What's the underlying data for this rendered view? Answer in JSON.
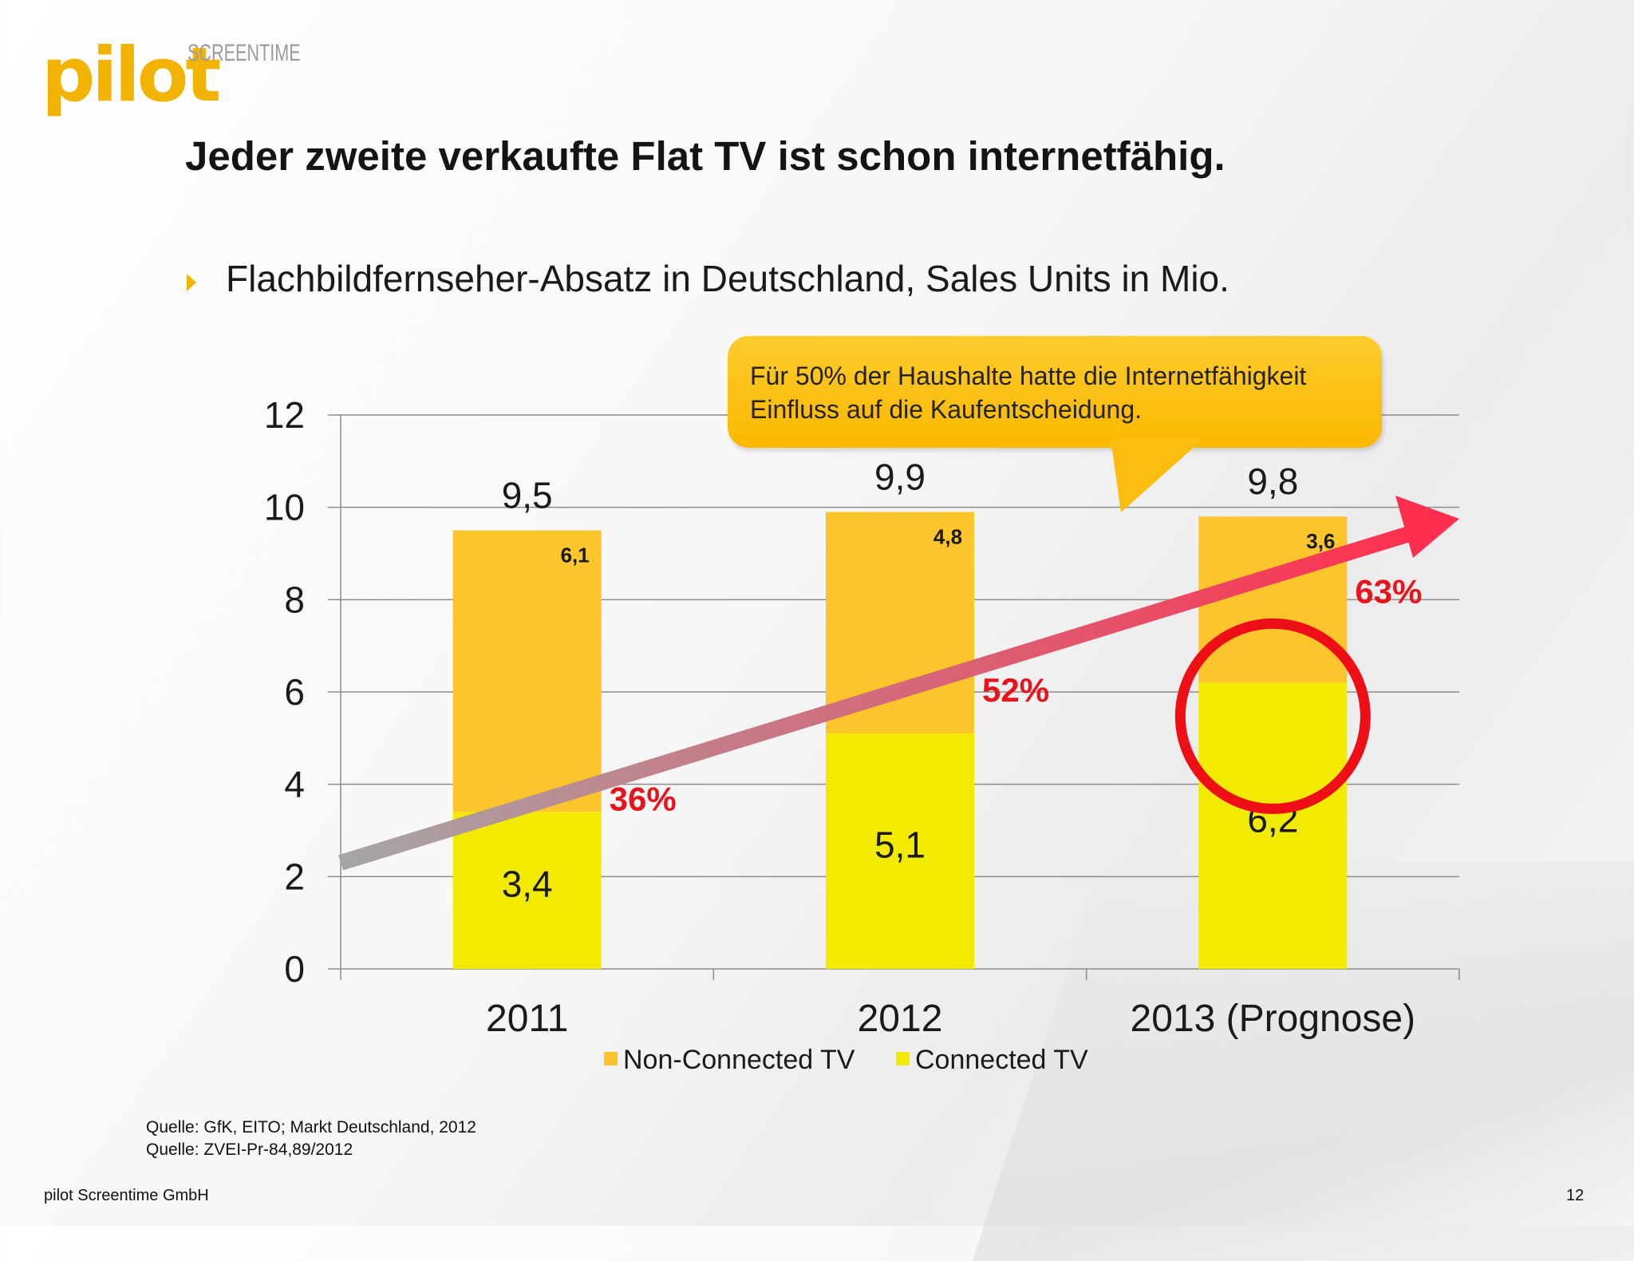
{
  "logo": {
    "word": "pilot",
    "mark": "SCREENTIME"
  },
  "slide_title": "Jeder zweite verkaufte Flat TV ist schon internetfähig.",
  "subtitle": "Flachbildfernseher-Absatz in Deutschland, Sales Units in Mio.",
  "callout": "Für 50% der Haushalte hatte die Internetfähigkeit Einfluss auf die Kaufentscheidung.",
  "chart_data": {
    "type": "bar",
    "stacked": true,
    "categories": [
      "2011",
      "2012",
      "2013 (Prognose)"
    ],
    "series": [
      {
        "name": "Connected TV",
        "values": [
          3.4,
          5.1,
          6.2
        ],
        "labels": [
          "3,4",
          "5,1",
          "6,2"
        ],
        "color": "#f2ea00"
      },
      {
        "name": "Non-Connected TV",
        "values": [
          6.1,
          4.8,
          3.6
        ],
        "labels": [
          "6,1",
          "4,8",
          "3,6"
        ],
        "color": "#fcc52c"
      }
    ],
    "totals": [
      9.5,
      9.9,
      9.8
    ],
    "total_labels": [
      "9,5",
      "9,9",
      "9,8"
    ],
    "connected_share_labels": [
      "36%",
      "52%",
      "63%"
    ],
    "y_ticks": [
      "0",
      "2",
      "4",
      "6",
      "8",
      "10",
      "12"
    ],
    "ylim": [
      0,
      12
    ],
    "grid": true,
    "legend": "bottom",
    "legend_entries": [
      "Non-Connected TV",
      "Connected TV"
    ],
    "trend_arrow": true,
    "highlight_circle_category": "2013 (Prognose)",
    "colors": {
      "arrow_start": "#a6a6a6",
      "arrow_end": "#ff2f4f",
      "share_label": "#e8141c",
      "circle": "#ee0f16"
    }
  },
  "sources": [
    "Quelle: GfK, EITO; Markt Deutschland, 2012",
    "Quelle: ZVEI-Pr-84,89/2012"
  ],
  "footer": {
    "company": "pilot Screentime GmbH",
    "page": "12"
  }
}
